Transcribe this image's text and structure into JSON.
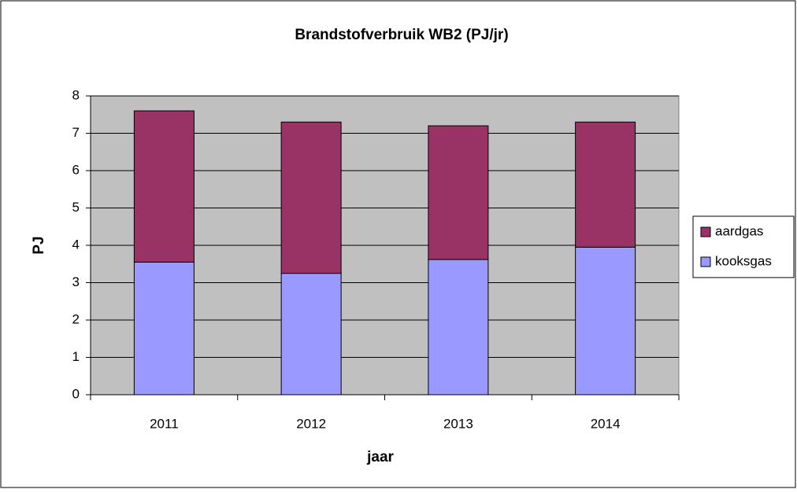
{
  "chart_data": {
    "type": "stacked_bar",
    "title": "Brandstofverbruik WB2 (PJ/jr)",
    "x_label": "jaar",
    "y_label": "PJ",
    "categories": [
      "2011",
      "2012",
      "2013",
      "2014"
    ],
    "series": [
      {
        "name": "kooksgas",
        "color": "#9999ff",
        "values": [
          3.55,
          3.25,
          3.62,
          3.95
        ]
      },
      {
        "name": "aardgas",
        "color": "#993366",
        "values": [
          4.05,
          4.05,
          3.58,
          3.35
        ]
      }
    ],
    "ylim": [
      0,
      8
    ],
    "yticks": [
      0,
      1,
      2,
      3,
      4,
      5,
      6,
      7,
      8
    ],
    "grid": true,
    "legend": "right",
    "plot_background": "#c0c0c0"
  }
}
